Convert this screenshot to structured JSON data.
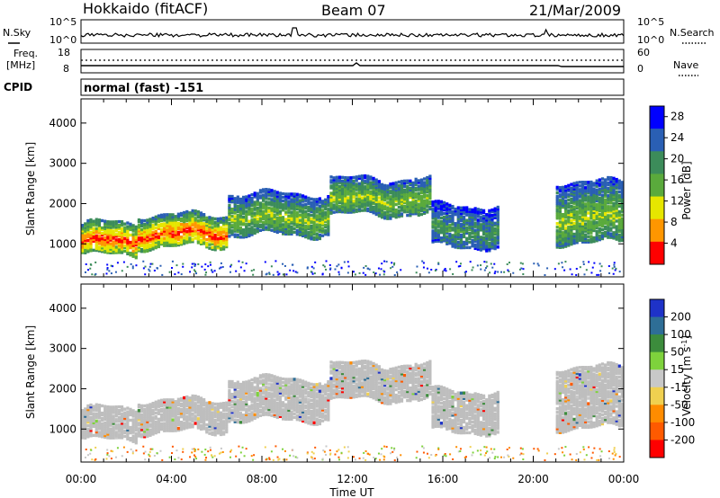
{
  "header": {
    "left": "Hokkaido (fitACF)",
    "center": "Beam 07",
    "right": "21/Mar/2009"
  },
  "status": {
    "nsky_label": "N.Sky",
    "nsky_ticks": [
      "10^5",
      "10^0"
    ],
    "nsearch_label": "N.Search",
    "nsearch_ticks": [
      "10^5",
      "10^0"
    ],
    "freq_label": [
      "Freq.",
      "[MHz]"
    ],
    "freq_ticks": [
      "18",
      "8"
    ],
    "nave_label": "Nave",
    "nave_ticks": [
      "60",
      "0"
    ],
    "cpid_label": "CPID",
    "cpid_value": "normal (fast) -151"
  },
  "chart_data": [
    {
      "type": "heatmap",
      "name": "power",
      "ylabel": "Slant Range [km]",
      "xlabel": "",
      "x_ticks": [
        "00:00",
        "04:00",
        "08:00",
        "12:00",
        "16:00",
        "20:00",
        "00:00"
      ],
      "y_ticks": [
        1000,
        2000,
        3000,
        4000
      ],
      "xlim_hours": [
        0,
        24
      ],
      "ylim_km": [
        180,
        4600
      ],
      "colorbar": {
        "label": "Power [dB]",
        "ticks": [
          4,
          8,
          12,
          16,
          20,
          24,
          28
        ],
        "range": [
          0,
          30
        ],
        "colors": [
          "#0000ff",
          "#2a5fb4",
          "#3c8c5a",
          "#5aaa3c",
          "#e6e600",
          "#ff9600",
          "#ff0000"
        ]
      },
      "backscatter_bands": [
        {
          "from_h": 0.0,
          "to_h": 2.5,
          "lo_km": 700,
          "hi_km": 1500,
          "power": "high"
        },
        {
          "from_h": 2.5,
          "to_h": 6.5,
          "lo_km": 900,
          "hi_km": 1700,
          "power": "high"
        },
        {
          "from_h": 6.5,
          "to_h": 11.0,
          "lo_km": 1200,
          "hi_km": 2200,
          "power": "medium"
        },
        {
          "from_h": 11.0,
          "to_h": 15.5,
          "lo_km": 1700,
          "hi_km": 2600,
          "power": "medium"
        },
        {
          "from_h": 15.5,
          "to_h": 18.5,
          "lo_km": 900,
          "hi_km": 1900,
          "power": "low"
        },
        {
          "from_h": 21.0,
          "to_h": 24.0,
          "lo_km": 1000,
          "hi_km": 2500,
          "power": "medium"
        }
      ]
    },
    {
      "type": "heatmap",
      "name": "velocity",
      "ylabel": "Slant Range [km]",
      "xlabel": "Time UT",
      "x_ticks": [
        "00:00",
        "04:00",
        "08:00",
        "12:00",
        "16:00",
        "20:00",
        "00:00"
      ],
      "y_ticks": [
        1000,
        2000,
        3000,
        4000
      ],
      "xlim_hours": [
        0,
        24
      ],
      "ylim_km": [
        180,
        4600
      ],
      "colorbar": {
        "label": "Velocity [m s^-1]",
        "label_main": "Velocity [m s",
        "label_sup": "-1",
        "label_end": "]",
        "ticks": [
          200,
          100,
          50,
          15,
          -15,
          -50,
          -100,
          -200
        ],
        "colors": [
          "#1e32c8",
          "#2e6e96",
          "#3c8c3c",
          "#7ed23c",
          "#c8c8c8",
          "#f0d050",
          "#ff8c00",
          "#ff5a00",
          "#ff0000"
        ]
      },
      "ground_scatter_color": "#bebebe"
    }
  ]
}
